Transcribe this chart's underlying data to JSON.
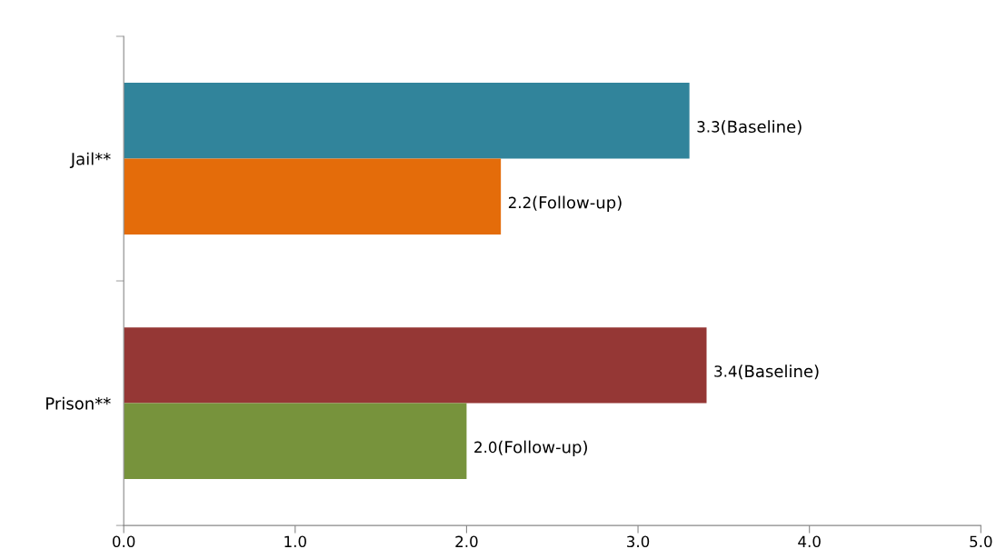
{
  "chart_data": {
    "type": "bar",
    "orientation": "horizontal",
    "categories": [
      "Jail**",
      "Prison**"
    ],
    "series": [
      {
        "name": "(Baseline)",
        "colors": [
          "#31849b",
          "#953735"
        ],
        "values": [
          3.3,
          3.4
        ],
        "value_labels": [
          "3.3",
          "3.4"
        ]
      },
      {
        "name": "(Follow-up)",
        "colors": [
          "#e46c0a",
          "#77933c"
        ],
        "values": [
          2.2,
          2.0
        ],
        "value_labels": [
          "2.2",
          "2.0"
        ]
      }
    ],
    "xlim": [
      0,
      5
    ],
    "xticks": [
      {
        "value": 0,
        "label": "0.0"
      },
      {
        "value": 1,
        "label": "1.0"
      },
      {
        "value": 2,
        "label": "2.0"
      },
      {
        "value": 3,
        "label": "3.0"
      },
      {
        "value": 4,
        "label": "4.0"
      },
      {
        "value": 5,
        "label": "5.0"
      }
    ],
    "grid": false,
    "legend": false
  }
}
